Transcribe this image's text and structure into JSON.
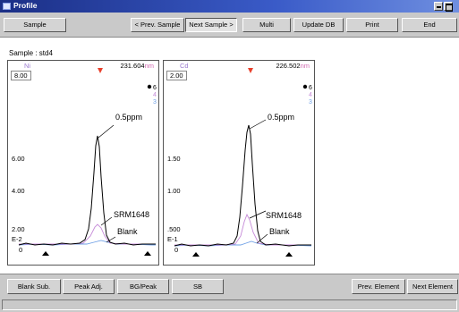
{
  "window": {
    "title": "Profile"
  },
  "toolbar": {
    "sample": "Sample",
    "prev_sample": "< Prev. Sample",
    "next_sample": "Next Sample >",
    "multi": "Multi",
    "update_db": "Update DB",
    "print": "Print",
    "end": "End"
  },
  "sample_label": "Sample : std4",
  "panels": [
    {
      "element": "Ni",
      "wavelength": "231.604",
      "unit": "nm",
      "scale_top": "8.00",
      "y_ticks": [
        "6.00",
        "4.00",
        "2.00"
      ],
      "exponent": "E-2",
      "zero": "0",
      "legend": [
        "6",
        "4",
        "3"
      ],
      "annotations": {
        "peak": "0.5ppm",
        "srm": "SRM1648",
        "blank": "Blank"
      }
    },
    {
      "element": "Cd",
      "wavelength": "226.502",
      "unit": "nm",
      "scale_top": "2.00",
      "y_ticks": [
        "1.50",
        "1.00",
        ".500"
      ],
      "exponent": "E-1",
      "zero": "0",
      "legend": [
        "6",
        "4",
        "3"
      ],
      "annotations": {
        "peak": "0.5ppm",
        "srm": "SRM1648",
        "blank": "Blank"
      }
    }
  ],
  "bottombar": {
    "blank_sub": "Blank Sub.",
    "peak_adj": "Peak Adj.",
    "bg_peak": "BG/Peak",
    "sb": "SB",
    "prev_element": "Prev. Element",
    "next_element": "Next Element"
  },
  "colors": {
    "trace_6": "#000000",
    "trace_4": "#c58ad8",
    "trace_3": "#6fa0e6",
    "marker": "#e8402b",
    "unit": "#d36ab2"
  }
}
